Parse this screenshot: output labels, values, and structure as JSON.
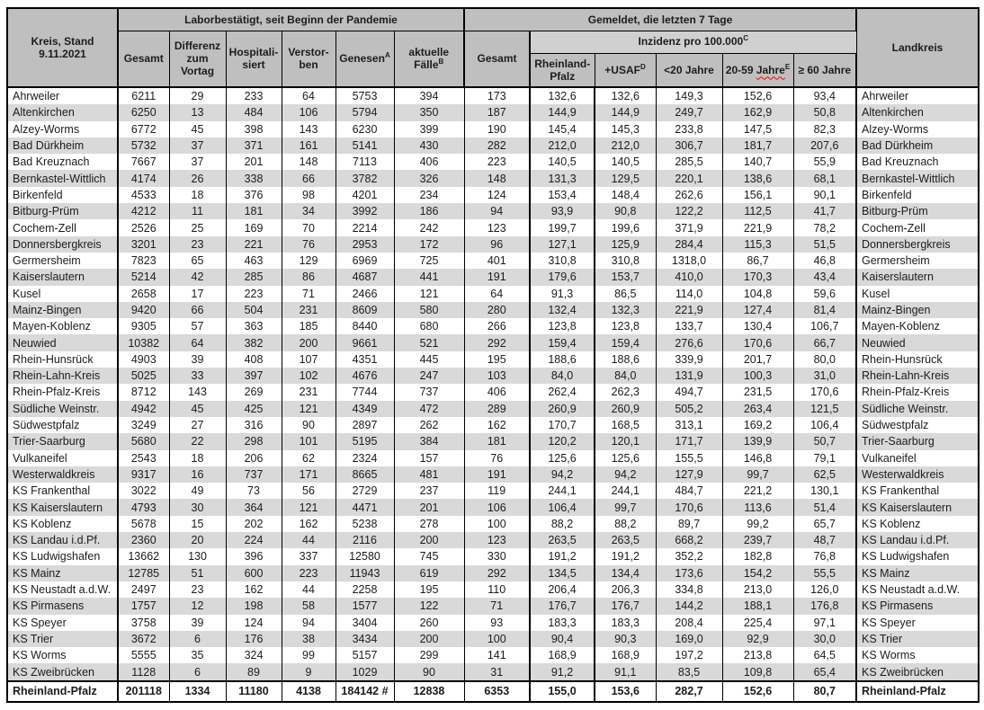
{
  "colors": {
    "header_bg": "#bfbfbf",
    "incidence_band_bg": "#d0d0d0",
    "row_stripe": "#d9d9d9",
    "border": "#000000",
    "spellcheck_squiggle": "#ff0000"
  },
  "header": {
    "kreis_line1": "Kreis, Stand",
    "kreis_line2": "9.11.2021",
    "lab_group": "Laborbestätigt, seit Beginn der Pandemie",
    "lab_cols": [
      {
        "text": "Gesamt",
        "sup": ""
      },
      {
        "text": "Differenz zum Vortag",
        "sup": ""
      },
      {
        "text": "Hospitali-siert",
        "sup": ""
      },
      {
        "text": "Verstor-ben",
        "sup": ""
      },
      {
        "text": "Genesen",
        "sup": "A"
      },
      {
        "text": "aktuelle Fälle",
        "sup": "B"
      }
    ],
    "reported_group": "Gemeldet, die letzten 7 Tage",
    "reported_total": {
      "text": "Gesamt",
      "sup": ""
    },
    "incidence_group": {
      "text": "Inzidenz pro 100.000",
      "sup": "C"
    },
    "incidence_cols": [
      {
        "text": "Rheinland-Pfalz",
        "sup": ""
      },
      {
        "text": "+USAF",
        "sup": "D"
      },
      {
        "text": "<20 Jahre",
        "sup": ""
      },
      {
        "pre": "20-59 ",
        "wavy": "Jahre",
        "sup": "E"
      },
      {
        "text": "≥ 60 Jahre",
        "sup": ""
      }
    ],
    "landkreis": "Landkreis"
  },
  "rows": [
    {
      "kreis": "Ahrweiler",
      "values": [
        "6211",
        "29",
        "233",
        "64",
        "5753",
        "394",
        "173",
        "132,6",
        "132,6",
        "149,3",
        "152,6",
        "93,4"
      ],
      "landkreis": "Ahrweiler"
    },
    {
      "kreis": "Altenkirchen",
      "values": [
        "6250",
        "13",
        "484",
        "106",
        "5794",
        "350",
        "187",
        "144,9",
        "144,9",
        "249,7",
        "162,9",
        "50,8"
      ],
      "landkreis": "Altenkirchen"
    },
    {
      "kreis": "Alzey-Worms",
      "values": [
        "6772",
        "45",
        "398",
        "143",
        "6230",
        "399",
        "190",
        "145,4",
        "145,3",
        "233,8",
        "147,5",
        "82,3"
      ],
      "landkreis": "Alzey-Worms"
    },
    {
      "kreis": "Bad Dürkheim",
      "values": [
        "5732",
        "37",
        "371",
        "161",
        "5141",
        "430",
        "282",
        "212,0",
        "212,0",
        "306,7",
        "181,7",
        "207,6"
      ],
      "landkreis": "Bad Dürkheim"
    },
    {
      "kreis": "Bad Kreuznach",
      "values": [
        "7667",
        "37",
        "201",
        "148",
        "7113",
        "406",
        "223",
        "140,5",
        "140,5",
        "285,5",
        "140,7",
        "55,9"
      ],
      "landkreis": "Bad Kreuznach"
    },
    {
      "kreis": "Bernkastel-Wittlich",
      "values": [
        "4174",
        "26",
        "338",
        "66",
        "3782",
        "326",
        "148",
        "131,3",
        "129,5",
        "220,1",
        "138,6",
        "68,1"
      ],
      "landkreis": "Bernkastel-Wittlich"
    },
    {
      "kreis": "Birkenfeld",
      "values": [
        "4533",
        "18",
        "376",
        "98",
        "4201",
        "234",
        "124",
        "153,4",
        "148,4",
        "262,6",
        "156,1",
        "90,1"
      ],
      "landkreis": "Birkenfeld"
    },
    {
      "kreis": "Bitburg-Prüm",
      "values": [
        "4212",
        "11",
        "181",
        "34",
        "3992",
        "186",
        "94",
        "93,9",
        "90,8",
        "122,2",
        "112,5",
        "41,7"
      ],
      "landkreis": "Bitburg-Prüm"
    },
    {
      "kreis": "Cochem-Zell",
      "values": [
        "2526",
        "25",
        "169",
        "70",
        "2214",
        "242",
        "123",
        "199,7",
        "199,6",
        "371,9",
        "221,9",
        "78,2"
      ],
      "landkreis": "Cochem-Zell"
    },
    {
      "kreis": "Donnersbergkreis",
      "values": [
        "3201",
        "23",
        "221",
        "76",
        "2953",
        "172",
        "96",
        "127,1",
        "125,9",
        "284,4",
        "115,3",
        "51,5"
      ],
      "landkreis": "Donnersbergkreis"
    },
    {
      "kreis": "Germersheim",
      "values": [
        "7823",
        "65",
        "463",
        "129",
        "6969",
        "725",
        "401",
        "310,8",
        "310,8",
        "1318,0",
        "86,7",
        "46,8"
      ],
      "landkreis": "Germersheim"
    },
    {
      "kreis": "Kaiserslautern",
      "values": [
        "5214",
        "42",
        "285",
        "86",
        "4687",
        "441",
        "191",
        "179,6",
        "153,7",
        "410,0",
        "170,3",
        "43,4"
      ],
      "landkreis": "Kaiserslautern"
    },
    {
      "kreis": "Kusel",
      "values": [
        "2658",
        "17",
        "223",
        "71",
        "2466",
        "121",
        "64",
        "91,3",
        "86,5",
        "114,0",
        "104,8",
        "59,6"
      ],
      "landkreis": "Kusel"
    },
    {
      "kreis": "Mainz-Bingen",
      "values": [
        "9420",
        "66",
        "504",
        "231",
        "8609",
        "580",
        "280",
        "132,4",
        "132,3",
        "221,9",
        "127,4",
        "81,4"
      ],
      "landkreis": "Mainz-Bingen"
    },
    {
      "kreis": "Mayen-Koblenz",
      "values": [
        "9305",
        "57",
        "363",
        "185",
        "8440",
        "680",
        "266",
        "123,8",
        "123,8",
        "133,7",
        "130,4",
        "106,7"
      ],
      "landkreis": "Mayen-Koblenz"
    },
    {
      "kreis": "Neuwied",
      "values": [
        "10382",
        "64",
        "382",
        "200",
        "9661",
        "521",
        "292",
        "159,4",
        "159,4",
        "276,6",
        "170,6",
        "66,7"
      ],
      "landkreis": "Neuwied"
    },
    {
      "kreis": "Rhein-Hunsrück",
      "values": [
        "4903",
        "39",
        "408",
        "107",
        "4351",
        "445",
        "195",
        "188,6",
        "188,6",
        "339,9",
        "201,7",
        "80,0"
      ],
      "landkreis": "Rhein-Hunsrück"
    },
    {
      "kreis": "Rhein-Lahn-Kreis",
      "values": [
        "5025",
        "33",
        "397",
        "102",
        "4676",
        "247",
        "103",
        "84,0",
        "84,0",
        "131,9",
        "100,3",
        "31,0"
      ],
      "landkreis": "Rhein-Lahn-Kreis"
    },
    {
      "kreis": "Rhein-Pfalz-Kreis",
      "values": [
        "8712",
        "143",
        "269",
        "231",
        "7744",
        "737",
        "406",
        "262,4",
        "262,3",
        "494,7",
        "231,5",
        "170,6"
      ],
      "landkreis": "Rhein-Pfalz-Kreis"
    },
    {
      "kreis": "Südliche Weinstr.",
      "values": [
        "4942",
        "45",
        "425",
        "121",
        "4349",
        "472",
        "289",
        "260,9",
        "260,9",
        "505,2",
        "263,4",
        "121,5"
      ],
      "landkreis": "Südliche Weinstr."
    },
    {
      "kreis": "Südwestpfalz",
      "values": [
        "3249",
        "27",
        "316",
        "90",
        "2897",
        "262",
        "162",
        "170,7",
        "168,5",
        "313,1",
        "169,2",
        "106,4"
      ],
      "landkreis": "Südwestpfalz"
    },
    {
      "kreis": "Trier-Saarburg",
      "values": [
        "5680",
        "22",
        "298",
        "101",
        "5195",
        "384",
        "181",
        "120,2",
        "120,1",
        "171,7",
        "139,9",
        "50,7"
      ],
      "landkreis": "Trier-Saarburg"
    },
    {
      "kreis": "Vulkaneifel",
      "values": [
        "2543",
        "18",
        "206",
        "62",
        "2324",
        "157",
        "76",
        "125,6",
        "125,6",
        "155,5",
        "146,8",
        "79,1"
      ],
      "landkreis": "Vulkaneifel"
    },
    {
      "kreis": "Westerwaldkreis",
      "values": [
        "9317",
        "16",
        "737",
        "171",
        "8665",
        "481",
        "191",
        "94,2",
        "94,2",
        "127,9",
        "99,7",
        "62,5"
      ],
      "landkreis": "Westerwaldkreis"
    },
    {
      "kreis": "KS Frankenthal",
      "values": [
        "3022",
        "49",
        "73",
        "56",
        "2729",
        "237",
        "119",
        "244,1",
        "244,1",
        "484,7",
        "221,2",
        "130,1"
      ],
      "landkreis": "KS Frankenthal"
    },
    {
      "kreis": "KS Kaiserslautern",
      "values": [
        "4793",
        "30",
        "364",
        "121",
        "4471",
        "201",
        "106",
        "106,4",
        "99,7",
        "170,6",
        "113,6",
        "51,4"
      ],
      "landkreis": "KS Kaiserslautern"
    },
    {
      "kreis": "KS Koblenz",
      "values": [
        "5678",
        "15",
        "202",
        "162",
        "5238",
        "278",
        "100",
        "88,2",
        "88,2",
        "89,7",
        "99,2",
        "65,7"
      ],
      "landkreis": "KS Koblenz"
    },
    {
      "kreis": "KS Landau i.d.Pf.",
      "values": [
        "2360",
        "20",
        "224",
        "44",
        "2116",
        "200",
        "123",
        "263,5",
        "263,5",
        "668,2",
        "239,7",
        "48,7"
      ],
      "landkreis": "KS Landau i.d.Pf."
    },
    {
      "kreis": "KS Ludwigshafen",
      "values": [
        "13662",
        "130",
        "396",
        "337",
        "12580",
        "745",
        "330",
        "191,2",
        "191,2",
        "352,2",
        "182,8",
        "76,8"
      ],
      "landkreis": "KS Ludwigshafen"
    },
    {
      "kreis": "KS Mainz",
      "values": [
        "12785",
        "51",
        "600",
        "223",
        "11943",
        "619",
        "292",
        "134,5",
        "134,4",
        "173,6",
        "154,2",
        "55,5"
      ],
      "landkreis": "KS Mainz"
    },
    {
      "kreis": "KS Neustadt a.d.W.",
      "values": [
        "2497",
        "23",
        "162",
        "44",
        "2258",
        "195",
        "110",
        "206,4",
        "206,3",
        "334,8",
        "213,0",
        "126,0"
      ],
      "landkreis": "KS Neustadt a.d.W."
    },
    {
      "kreis": "KS Pirmasens",
      "values": [
        "1757",
        "12",
        "198",
        "58",
        "1577",
        "122",
        "71",
        "176,7",
        "176,7",
        "144,2",
        "188,1",
        "176,8"
      ],
      "landkreis": "KS Pirmasens"
    },
    {
      "kreis": "KS Speyer",
      "values": [
        "3758",
        "39",
        "124",
        "94",
        "3404",
        "260",
        "93",
        "183,3",
        "183,3",
        "208,4",
        "225,4",
        "97,1"
      ],
      "landkreis": "KS Speyer"
    },
    {
      "kreis": "KS Trier",
      "values": [
        "3672",
        "6",
        "176",
        "38",
        "3434",
        "200",
        "100",
        "90,4",
        "90,3",
        "169,0",
        "92,9",
        "30,0"
      ],
      "landkreis": "KS Trier"
    },
    {
      "kreis": "KS Worms",
      "values": [
        "5555",
        "35",
        "324",
        "99",
        "5157",
        "299",
        "141",
        "168,9",
        "168,9",
        "197,2",
        "213,8",
        "64,5"
      ],
      "landkreis": "KS Worms"
    },
    {
      "kreis": "KS Zweibrücken",
      "values": [
        "1128",
        "6",
        "89",
        "9",
        "1029",
        "90",
        "31",
        "91,2",
        "91,1",
        "83,5",
        "109,8",
        "65,4"
      ],
      "landkreis": "KS Zweibrücken"
    }
  ],
  "total_row": {
    "kreis": "Rheinland-Pfalz",
    "values": [
      "201118",
      "1334",
      "11180",
      "4138",
      "184142 #",
      "12838",
      "6353",
      "155,0",
      "153,6",
      "282,7",
      "152,6",
      "80,7"
    ],
    "landkreis": "Rheinland-Pfalz"
  }
}
